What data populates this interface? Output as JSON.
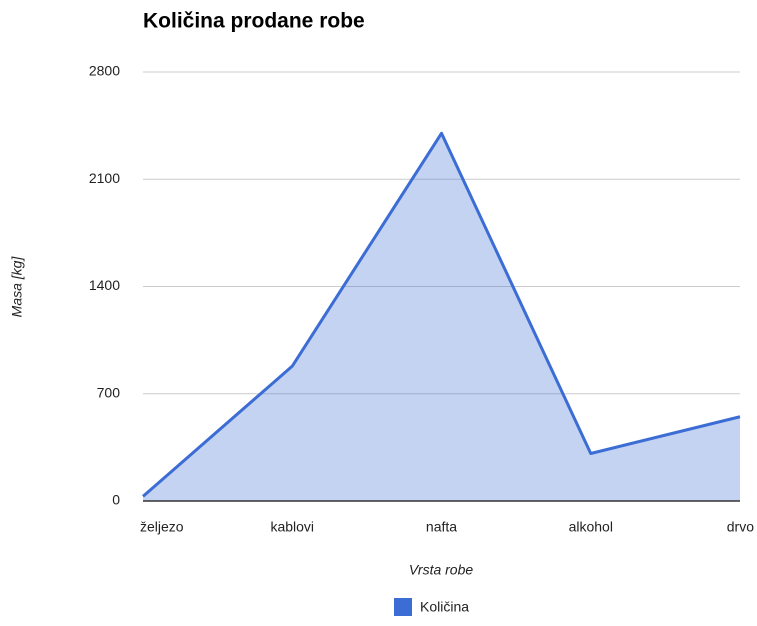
{
  "chart_data": {
    "type": "area",
    "title": "Količina prodane robe",
    "xlabel": "Vrsta robe",
    "ylabel": "Masa [kg]",
    "categories": [
      "željezo",
      "kablovi",
      "nafta",
      "alkohol",
      "drvo"
    ],
    "series": [
      {
        "name": "Količina",
        "color": "#3b6dd4",
        "values": [
          30,
          880,
          2400,
          310,
          550
        ]
      }
    ],
    "ylim": [
      0,
      2800
    ],
    "yticks": [
      0,
      700,
      1400,
      2100,
      2800
    ],
    "grid": true,
    "legend": "bottom"
  }
}
